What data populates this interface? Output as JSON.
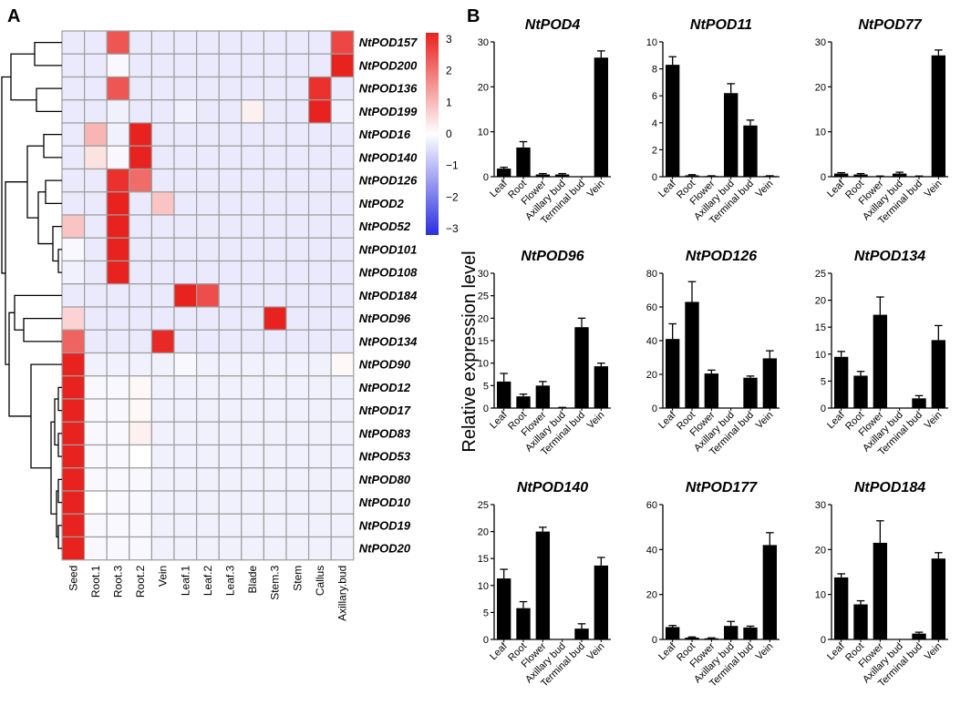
{
  "panel_a_label": "A",
  "panel_b_label": "B",
  "colors": {
    "high": "#e8221e",
    "mid": "#ffffff",
    "low": "#2a2ee0",
    "grid": "#9e9e9e",
    "bar": "#000000"
  },
  "chart_data": [
    {
      "type": "heatmap",
      "columns": [
        "Seed",
        "Root.1",
        "Root.3",
        "Root.2",
        "Vein",
        "Leaf.1",
        "Leaf.2",
        "Leaf.3",
        "Blade",
        "Stem.3",
        "Stem",
        "Callus",
        "Axillary.bud"
      ],
      "rows": [
        "NtPOD157",
        "NtPOD200",
        "NtPOD136",
        "NtPOD199",
        "NtPOD16",
        "NtPOD140",
        "NtPOD126",
        "NtPOD2",
        "NtPOD52",
        "NtPOD101",
        "NtPOD108",
        "NtPOD184",
        "NtPOD96",
        "NtPOD134",
        "NtPOD90",
        "NtPOD12",
        "NtPOD17",
        "NtPOD83",
        "NtPOD53",
        "NtPOD80",
        "NtPOD10",
        "NtPOD19",
        "NtPOD20"
      ],
      "values": [
        [
          -0.3,
          -0.3,
          2.3,
          -0.3,
          -0.3,
          -0.3,
          -0.3,
          -0.3,
          -0.3,
          -0.3,
          -0.3,
          -0.3,
          2.5
        ],
        [
          -0.3,
          -0.3,
          -0.1,
          -0.3,
          -0.3,
          -0.3,
          -0.3,
          -0.3,
          -0.3,
          -0.3,
          -0.3,
          -0.3,
          3.3
        ],
        [
          -0.3,
          -0.3,
          2.3,
          -0.3,
          -0.3,
          -0.3,
          -0.3,
          -0.3,
          -0.3,
          -0.3,
          -0.3,
          2.8,
          -0.3
        ],
        [
          -0.3,
          -0.3,
          -0.2,
          -0.3,
          -0.3,
          -0.2,
          -0.3,
          -0.3,
          0.2,
          -0.3,
          -0.3,
          3.2,
          -0.2
        ],
        [
          -0.3,
          1.0,
          -0.2,
          3.2,
          -0.3,
          -0.3,
          -0.3,
          -0.3,
          -0.3,
          -0.3,
          -0.3,
          -0.3,
          -0.3
        ],
        [
          -0.3,
          0.4,
          -0.1,
          3.3,
          -0.3,
          -0.3,
          -0.3,
          -0.3,
          -0.3,
          -0.3,
          -0.3,
          -0.3,
          -0.3
        ],
        [
          -0.3,
          -0.3,
          2.8,
          2.0,
          -0.3,
          -0.3,
          -0.3,
          -0.3,
          -0.3,
          -0.3,
          -0.3,
          -0.3,
          -0.3
        ],
        [
          -0.3,
          -0.3,
          3.2,
          -0.3,
          0.8,
          -0.3,
          -0.3,
          -0.3,
          -0.3,
          -0.3,
          -0.3,
          -0.3,
          -0.3
        ],
        [
          0.8,
          -0.3,
          3.2,
          -0.3,
          -0.3,
          -0.3,
          -0.3,
          -0.3,
          -0.3,
          -0.3,
          -0.3,
          -0.3,
          -0.3
        ],
        [
          -0.1,
          -0.3,
          3.3,
          -0.3,
          -0.3,
          -0.3,
          -0.3,
          -0.3,
          -0.3,
          -0.3,
          -0.3,
          -0.3,
          -0.3
        ],
        [
          -0.2,
          -0.3,
          3.3,
          -0.3,
          -0.3,
          -0.3,
          -0.3,
          -0.3,
          -0.3,
          -0.3,
          -0.3,
          -0.3,
          -0.3
        ],
        [
          -0.3,
          -0.3,
          -0.3,
          -0.3,
          -0.3,
          3.0,
          2.4,
          -0.3,
          -0.3,
          -0.3,
          -0.3,
          -0.3,
          -0.3
        ],
        [
          0.6,
          -0.3,
          -0.3,
          -0.3,
          -0.3,
          -0.3,
          -0.3,
          -0.3,
          -0.3,
          3.3,
          -0.3,
          -0.3,
          -0.3
        ],
        [
          2.1,
          -0.3,
          -0.3,
          -0.3,
          2.9,
          -0.3,
          -0.3,
          -0.3,
          -0.3,
          -0.3,
          -0.3,
          -0.3,
          -0.3
        ],
        [
          3.3,
          -0.2,
          -0.2,
          -0.2,
          -0.2,
          -0.1,
          -0.2,
          -0.2,
          -0.2,
          -0.2,
          -0.2,
          -0.2,
          0.1
        ],
        [
          3.3,
          -0.1,
          -0.1,
          0.1,
          -0.2,
          -0.2,
          -0.2,
          -0.2,
          -0.2,
          -0.2,
          -0.2,
          -0.2,
          -0.2
        ],
        [
          3.3,
          -0.1,
          -0.1,
          0.1,
          -0.2,
          -0.2,
          -0.2,
          -0.2,
          -0.2,
          -0.2,
          -0.2,
          -0.2,
          -0.2
        ],
        [
          3.3,
          -0.1,
          -0.1,
          0.2,
          -0.2,
          -0.2,
          -0.2,
          -0.2,
          -0.2,
          -0.2,
          -0.2,
          -0.2,
          -0.2
        ],
        [
          3.3,
          -0.1,
          -0.1,
          0.0,
          -0.2,
          -0.2,
          -0.2,
          -0.2,
          -0.2,
          -0.2,
          -0.2,
          -0.2,
          -0.2
        ],
        [
          3.3,
          -0.1,
          -0.1,
          -0.1,
          -0.2,
          -0.2,
          -0.2,
          -0.2,
          -0.2,
          -0.2,
          -0.2,
          -0.2,
          -0.2
        ],
        [
          3.3,
          0.0,
          -0.1,
          -0.1,
          -0.2,
          -0.2,
          -0.2,
          -0.2,
          -0.2,
          -0.2,
          -0.2,
          -0.2,
          -0.2
        ],
        [
          3.3,
          -0.1,
          -0.1,
          -0.1,
          -0.2,
          -0.2,
          -0.2,
          -0.2,
          -0.2,
          -0.2,
          -0.2,
          -0.2,
          -0.2
        ],
        [
          3.3,
          -0.1,
          -0.1,
          -0.1,
          -0.2,
          -0.2,
          -0.2,
          -0.2,
          -0.2,
          -0.2,
          -0.2,
          -0.2,
          -0.2
        ]
      ],
      "color_scale": {
        "min": -3,
        "max": 3,
        "ticks": [
          "3",
          "2",
          "1",
          "0",
          "−1",
          "−2",
          "−3"
        ]
      },
      "dendrogram": "hierarchical clustering of rows"
    },
    {
      "type": "bar",
      "title": "NtPOD4",
      "categories": [
        "Leaf",
        "Root",
        "Flower",
        "Axillary bud",
        "Terminal bud",
        "Vein"
      ],
      "values": [
        1.8,
        6.5,
        0.5,
        0.5,
        0.0,
        26.5
      ],
      "errors": [
        0.3,
        1.3,
        0.2,
        0.2,
        0.0,
        1.5
      ],
      "ylim": [
        0,
        30
      ],
      "yticks": [
        "0",
        "10",
        "20",
        "30"
      ]
    },
    {
      "type": "bar",
      "title": "NtPOD11",
      "categories": [
        "Leaf",
        "Root",
        "Flower",
        "Axillary bud",
        "Terminal bud",
        "Vein"
      ],
      "values": [
        8.3,
        0.1,
        0.05,
        6.2,
        3.8,
        0.05
      ],
      "errors": [
        0.6,
        0.05,
        0.02,
        0.7,
        0.4,
        0.02
      ],
      "ylim": [
        0,
        10
      ],
      "yticks": [
        "0",
        "2",
        "4",
        "6",
        "8",
        "10"
      ]
    },
    {
      "type": "bar",
      "title": "NtPOD77",
      "categories": [
        "Leaf",
        "Root",
        "Flower",
        "Axillary bud",
        "Terminal bud",
        "Vein"
      ],
      "values": [
        0.7,
        0.5,
        0.1,
        0.7,
        0.1,
        27.0
      ],
      "errors": [
        0.2,
        0.2,
        0.05,
        0.3,
        0.05,
        1.2
      ],
      "ylim": [
        0,
        30
      ],
      "yticks": [
        "0",
        "10",
        "20",
        "30"
      ]
    },
    {
      "type": "bar",
      "title": "NtPOD96",
      "categories": [
        "Leaf",
        "Root",
        "Flower",
        "Axillary bud",
        "Terminal bud",
        "Vein"
      ],
      "values": [
        5.9,
        2.6,
        5.0,
        0.1,
        18.0,
        9.3
      ],
      "errors": [
        1.8,
        0.5,
        0.9,
        0.05,
        2.0,
        0.7
      ],
      "ylim": [
        0,
        30
      ],
      "yticks": [
        "0",
        "5",
        "10",
        "15",
        "20",
        "25",
        "30"
      ]
    },
    {
      "type": "bar",
      "title": "NtPOD126",
      "categories": [
        "Leaf",
        "Root",
        "Flower",
        "Axillary bud",
        "Terminal bud",
        "Vein"
      ],
      "values": [
        41.0,
        63.0,
        20.5,
        0.0,
        18.0,
        29.5
      ],
      "errors": [
        9.0,
        12.0,
        2.0,
        0.0,
        1.0,
        4.5
      ],
      "ylim": [
        0,
        80
      ],
      "yticks": [
        "0",
        "20",
        "40",
        "60",
        "80"
      ]
    },
    {
      "type": "bar",
      "title": "NtPOD134",
      "categories": [
        "Leaf",
        "Root",
        "Flower",
        "Axillary bud",
        "Terminal bud",
        "Vein"
      ],
      "values": [
        9.5,
        6.0,
        17.3,
        0.0,
        1.8,
        12.6
      ],
      "errors": [
        1.0,
        0.8,
        3.3,
        0.0,
        0.5,
        2.7
      ],
      "ylim": [
        0,
        25
      ],
      "yticks": [
        "0",
        "5",
        "10",
        "15",
        "20",
        "25"
      ]
    },
    {
      "type": "bar",
      "title": "NtPOD140",
      "categories": [
        "Leaf",
        "Root",
        "Flower",
        "Axillary bud",
        "Terminal bud",
        "Vein"
      ],
      "values": [
        11.3,
        5.8,
        20.0,
        0.0,
        2.0,
        13.7
      ],
      "errors": [
        1.7,
        1.2,
        0.8,
        0.0,
        0.9,
        1.5
      ],
      "ylim": [
        0,
        25
      ],
      "yticks": [
        "0",
        "5",
        "10",
        "15",
        "20",
        "25"
      ]
    },
    {
      "type": "bar",
      "title": "NtPOD177",
      "categories": [
        "Leaf",
        "Root",
        "Flower",
        "Axillary bud",
        "Terminal bud",
        "Vein"
      ],
      "values": [
        5.5,
        0.8,
        0.5,
        6.0,
        5.3,
        42.0
      ],
      "errors": [
        0.7,
        0.3,
        0.2,
        2.0,
        0.6,
        5.5
      ],
      "ylim": [
        0,
        60
      ],
      "yticks": [
        "0",
        "20",
        "40",
        "60"
      ]
    },
    {
      "type": "bar",
      "title": "NtPOD184",
      "categories": [
        "Leaf",
        "Root",
        "Flower",
        "Axillary bud",
        "Terminal bud",
        "Vein"
      ],
      "values": [
        13.8,
        7.8,
        21.5,
        0.0,
        1.3,
        18.0
      ],
      "errors": [
        0.8,
        0.8,
        4.9,
        0.0,
        0.3,
        1.3
      ],
      "ylim": [
        0,
        30
      ],
      "yticks": [
        "0",
        "10",
        "20",
        "30"
      ]
    }
  ],
  "shared_ylabel": "Relative expression level"
}
